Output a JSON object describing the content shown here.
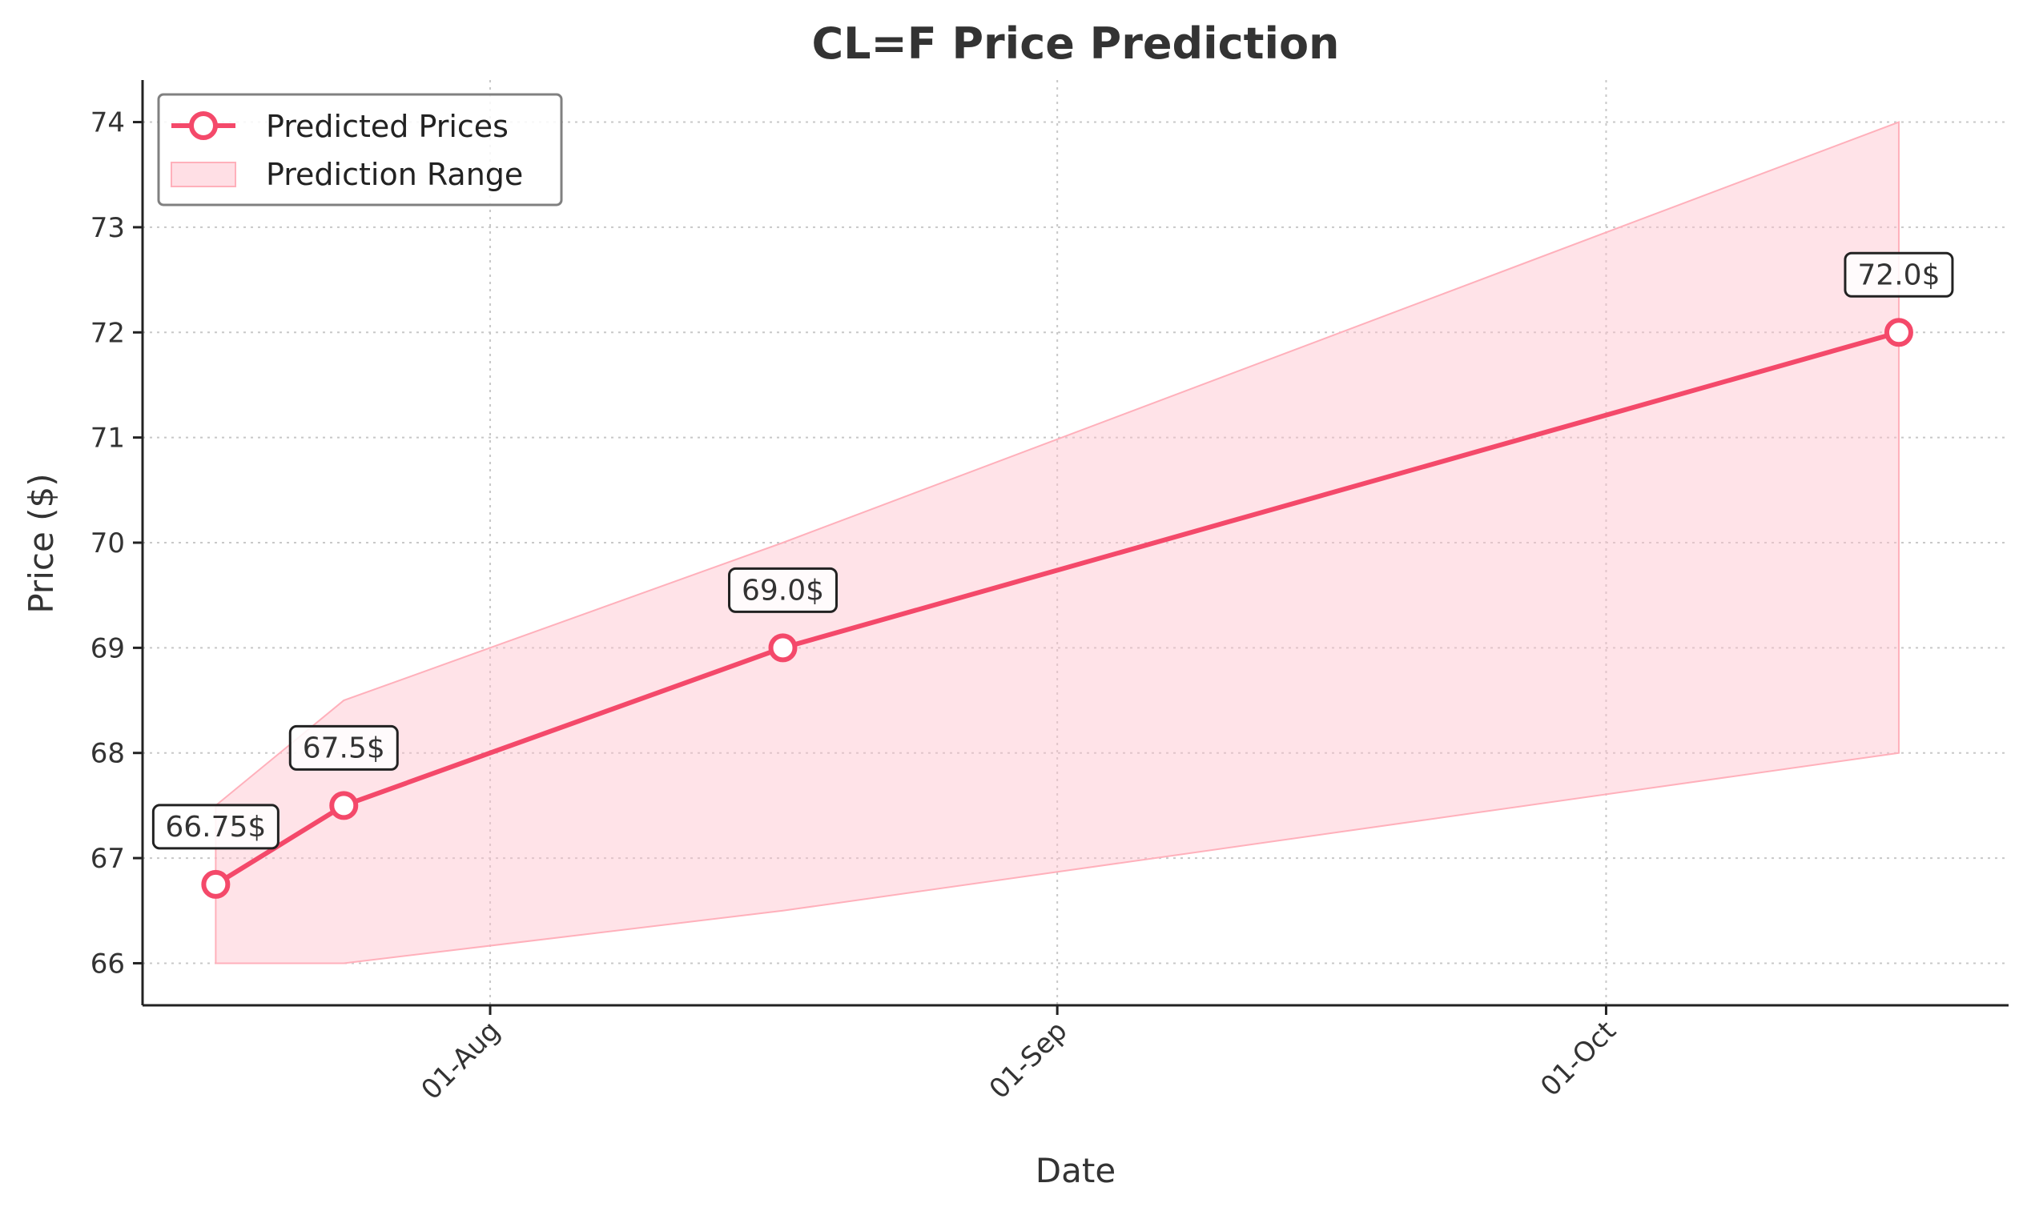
{
  "chart_data": {
    "type": "line",
    "title": "CL=F Price Prediction",
    "xlabel": "Date",
    "ylabel": "Price ($)",
    "x_axis": {
      "type": "date",
      "range": [
        "2024-07-13",
        "2024-10-23"
      ],
      "ticks": [
        {
          "date": "2024-08-01",
          "label": "01-Aug"
        },
        {
          "date": "2024-09-01",
          "label": "01-Sep"
        },
        {
          "date": "2024-10-01",
          "label": "01-Oct"
        }
      ]
    },
    "y_axis": {
      "range": [
        65.6,
        74.4
      ],
      "ticks": [
        {
          "value": 66,
          "label": "66"
        },
        {
          "value": 67,
          "label": "67"
        },
        {
          "value": 68,
          "label": "68"
        },
        {
          "value": 69,
          "label": "69"
        },
        {
          "value": 70,
          "label": "70"
        },
        {
          "value": 71,
          "label": "71"
        },
        {
          "value": 72,
          "label": "72"
        },
        {
          "value": 73,
          "label": "73"
        },
        {
          "value": 74,
          "label": "74"
        }
      ]
    },
    "grid": true,
    "legend": {
      "placement": "top-left",
      "entries": [
        "Predicted Prices",
        "Prediction Range"
      ]
    },
    "series": [
      {
        "name": "Predicted Prices",
        "kind": "line",
        "color": "#f4496a",
        "points": [
          {
            "date": "2024-07-17",
            "value": 66.75,
            "label": "66.75$"
          },
          {
            "date": "2024-07-24",
            "value": 67.5,
            "label": "67.5$"
          },
          {
            "date": "2024-08-17",
            "value": 69.0,
            "label": "69.0$"
          },
          {
            "date": "2024-10-17",
            "value": 72.0,
            "label": "72.0$"
          }
        ]
      },
      {
        "name": "Prediction Range",
        "kind": "band",
        "color": "#ffc0cb",
        "points": [
          {
            "date": "2024-07-17",
            "low": 66.0,
            "high": 67.5
          },
          {
            "date": "2024-07-24",
            "low": 66.0,
            "high": 68.5
          },
          {
            "date": "2024-08-17",
            "low": 66.5,
            "high": 70.0
          },
          {
            "date": "2024-10-17",
            "low": 68.0,
            "high": 74.0
          }
        ]
      }
    ]
  }
}
